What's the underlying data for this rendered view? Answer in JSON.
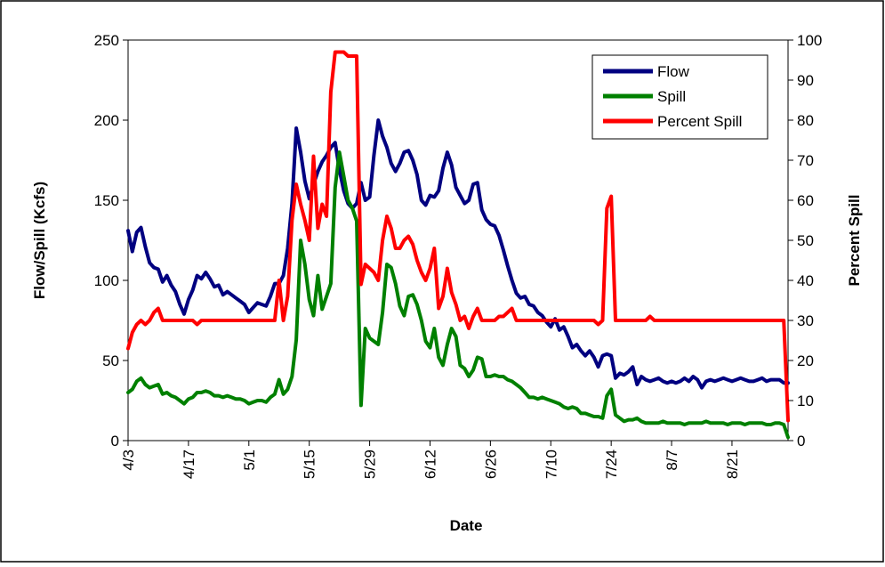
{
  "chart_data": {
    "type": "line",
    "title": "",
    "xlabel": "Date",
    "ylabel": "Flow/Spill (Kcfs)",
    "y2label": "Percent Spill",
    "ylim": [
      0,
      250
    ],
    "y2lim": [
      0,
      100
    ],
    "yticks": [
      "0",
      "50",
      "100",
      "150",
      "200",
      "250"
    ],
    "y2ticks": [
      "0",
      "10",
      "20",
      "30",
      "40",
      "50",
      "60",
      "70",
      "80",
      "90",
      "100"
    ],
    "xticks": [
      "4/3",
      "4/17",
      "5/1",
      "5/15",
      "5/29",
      "6/12",
      "6/26",
      "7/10",
      "7/24",
      "8/7",
      "8/21"
    ],
    "x_range_days": [
      0,
      153
    ],
    "grid": false,
    "legend_position": "top-right",
    "series": [
      {
        "name": "Flow",
        "axis": "left",
        "color": "#000080",
        "x": [
          0,
          1,
          2,
          3,
          4,
          5,
          6,
          7,
          8,
          9,
          10,
          11,
          12,
          13,
          14,
          15,
          16,
          17,
          18,
          19,
          20,
          21,
          22,
          23,
          24,
          25,
          26,
          27,
          28,
          29,
          30,
          31,
          32,
          33,
          34,
          35,
          36,
          37,
          38,
          39,
          40,
          41,
          42,
          43,
          44,
          45,
          46,
          47,
          48,
          49,
          50,
          51,
          52,
          53,
          54,
          55,
          56,
          57,
          58,
          59,
          60,
          61,
          62,
          63,
          64,
          65,
          66,
          67,
          68,
          69,
          70,
          71,
          72,
          73,
          74,
          75,
          76,
          77,
          78,
          79,
          80,
          81,
          82,
          83,
          84,
          85,
          86,
          87,
          88,
          89,
          90,
          91,
          92,
          93,
          94,
          95,
          96,
          97,
          98,
          99,
          100,
          101,
          102,
          103,
          104,
          105,
          106,
          107,
          108,
          109,
          110,
          111,
          112,
          113,
          114,
          115,
          116,
          117,
          118,
          119,
          120,
          121,
          122,
          123,
          124,
          125,
          126,
          127,
          128,
          129,
          130,
          131,
          132,
          133,
          134,
          135,
          136,
          137,
          138,
          139,
          140,
          141,
          142,
          143,
          144,
          145,
          146,
          147,
          148,
          149,
          150,
          151,
          152,
          153
        ],
        "values": [
          131,
          118,
          130,
          133,
          121,
          111,
          108,
          107,
          99,
          103,
          97,
          93,
          85,
          79,
          88,
          94,
          103,
          101,
          105,
          101,
          96,
          97,
          91,
          93,
          91,
          89,
          87,
          85,
          80,
          83,
          86,
          85,
          84,
          90,
          98,
          98,
          103,
          120,
          148,
          195,
          180,
          162,
          151,
          160,
          168,
          174,
          178,
          183,
          186,
          169,
          156,
          148,
          145,
          148,
          161,
          150,
          152,
          178,
          200,
          190,
          183,
          173,
          168,
          173,
          180,
          181,
          175,
          166,
          150,
          147,
          153,
          152,
          156,
          170,
          180,
          172,
          158,
          153,
          148,
          150,
          160,
          161,
          144,
          138,
          135,
          134,
          128,
          119,
          109,
          100,
          92,
          89,
          90,
          85,
          84,
          80,
          78,
          74,
          71,
          76,
          69,
          71,
          65,
          58,
          60,
          56,
          53,
          56,
          52,
          46,
          53,
          54,
          53,
          39,
          42,
          41,
          43,
          46,
          35,
          40,
          38,
          37,
          38,
          39,
          37,
          36,
          37,
          36,
          37,
          39,
          37,
          40,
          38,
          33,
          37,
          38,
          37,
          38,
          39,
          38,
          37,
          38,
          39,
          38,
          37,
          37,
          38,
          39,
          37,
          38,
          38,
          38,
          36,
          36
        ]
      },
      {
        "name": "Spill",
        "axis": "left",
        "color": "#008000",
        "x": [
          0,
          1,
          2,
          3,
          4,
          5,
          6,
          7,
          8,
          9,
          10,
          11,
          12,
          13,
          14,
          15,
          16,
          17,
          18,
          19,
          20,
          21,
          22,
          23,
          24,
          25,
          26,
          27,
          28,
          29,
          30,
          31,
          32,
          33,
          34,
          35,
          36,
          37,
          38,
          39,
          40,
          41,
          42,
          43,
          44,
          45,
          46,
          47,
          48,
          49,
          50,
          51,
          52,
          53,
          54,
          55,
          56,
          57,
          58,
          59,
          60,
          61,
          62,
          63,
          64,
          65,
          66,
          67,
          68,
          69,
          70,
          71,
          72,
          73,
          74,
          75,
          76,
          77,
          78,
          79,
          80,
          81,
          82,
          83,
          84,
          85,
          86,
          87,
          88,
          89,
          90,
          91,
          92,
          93,
          94,
          95,
          96,
          97,
          98,
          99,
          100,
          101,
          102,
          103,
          104,
          105,
          106,
          107,
          108,
          109,
          110,
          111,
          112,
          113,
          114,
          115,
          116,
          117,
          118,
          119,
          120,
          121,
          122,
          123,
          124,
          125,
          126,
          127,
          128,
          129,
          130,
          131,
          132,
          133,
          134,
          135,
          136,
          137,
          138,
          139,
          140,
          141,
          142,
          143,
          144,
          145,
          146,
          147,
          148,
          149,
          150,
          151,
          152,
          153
        ],
        "values": [
          30,
          32,
          37,
          39,
          35,
          33,
          34,
          35,
          29,
          30,
          28,
          27,
          25,
          23,
          26,
          27,
          30,
          30,
          31,
          30,
          28,
          28,
          27,
          28,
          27,
          26,
          26,
          25,
          23,
          24,
          25,
          25,
          24,
          27,
          29,
          38,
          29,
          32,
          40,
          63,
          125,
          110,
          88,
          78,
          103,
          82,
          90,
          98,
          158,
          180,
          165,
          150,
          145,
          137,
          22,
          70,
          64,
          62,
          60,
          80,
          110,
          108,
          98,
          84,
          78,
          90,
          91,
          85,
          75,
          62,
          58,
          70,
          52,
          47,
          60,
          70,
          65,
          47,
          45,
          40,
          44,
          52,
          51,
          40,
          40,
          41,
          40,
          40,
          38,
          37,
          35,
          33,
          30,
          27,
          27,
          26,
          27,
          26,
          25,
          24,
          23,
          21,
          20,
          21,
          20,
          17,
          17,
          16,
          15,
          15,
          14,
          28,
          32,
          16,
          14,
          12,
          13,
          13,
          14,
          12,
          11,
          11,
          11,
          11,
          12,
          11,
          11,
          11,
          11,
          10,
          11,
          11,
          11,
          11,
          12,
          11,
          11,
          11,
          11,
          10,
          11,
          11,
          11,
          10,
          11,
          11,
          11,
          11,
          10,
          10,
          11,
          11,
          10,
          2
        ]
      },
      {
        "name": "Percent Spill",
        "axis": "right",
        "color": "#ff0000",
        "x": [
          0,
          1,
          2,
          3,
          4,
          5,
          6,
          7,
          8,
          9,
          10,
          11,
          12,
          13,
          14,
          15,
          16,
          17,
          18,
          19,
          20,
          21,
          22,
          23,
          24,
          25,
          26,
          27,
          28,
          29,
          30,
          31,
          32,
          33,
          34,
          35,
          36,
          37,
          38,
          39,
          40,
          41,
          42,
          43,
          44,
          45,
          46,
          47,
          48,
          49,
          50,
          51,
          52,
          53,
          54,
          55,
          56,
          57,
          58,
          59,
          60,
          61,
          62,
          63,
          64,
          65,
          66,
          67,
          68,
          69,
          70,
          71,
          72,
          73,
          74,
          75,
          76,
          77,
          78,
          79,
          80,
          81,
          82,
          83,
          84,
          85,
          86,
          87,
          88,
          89,
          90,
          91,
          92,
          93,
          94,
          95,
          96,
          97,
          98,
          99,
          100,
          101,
          102,
          103,
          104,
          105,
          106,
          107,
          108,
          109,
          110,
          111,
          112,
          113,
          114,
          115,
          116,
          117,
          118,
          119,
          120,
          121,
          122,
          123,
          124,
          125,
          126,
          127,
          128,
          129,
          130,
          131,
          132,
          133,
          134,
          135,
          136,
          137,
          138,
          139,
          140,
          141,
          142,
          143,
          144,
          145,
          146,
          147,
          148,
          149,
          150,
          151,
          152,
          153
        ],
        "values": [
          23,
          27,
          29,
          30,
          29,
          30,
          32,
          33,
          30,
          30,
          30,
          30,
          30,
          30,
          30,
          30,
          29,
          30,
          30,
          30,
          30,
          30,
          30,
          30,
          30,
          30,
          30,
          30,
          30,
          30,
          30,
          30,
          30,
          30,
          30,
          40,
          30,
          36,
          55,
          64,
          59,
          55,
          50,
          71,
          53,
          59,
          56,
          87,
          97,
          97,
          97,
          96,
          96,
          96,
          39,
          44,
          43,
          42,
          40,
          50,
          56,
          53,
          48,
          48,
          50,
          51,
          49,
          45,
          42,
          40,
          43,
          48,
          33,
          36,
          43,
          37,
          34,
          30,
          31,
          28,
          31,
          33,
          30,
          30,
          30,
          30,
          31,
          31,
          32,
          33,
          30,
          30,
          30,
          30,
          30,
          30,
          30,
          30,
          30,
          30,
          30,
          30,
          30,
          30,
          30,
          30,
          30,
          30,
          30,
          29,
          30,
          58,
          61,
          30,
          30,
          30,
          30,
          30,
          30,
          30,
          30,
          31,
          30,
          30,
          30,
          30,
          30,
          30,
          30,
          30,
          30,
          30,
          30,
          30,
          30,
          30,
          30,
          30,
          30,
          30,
          30,
          30,
          30,
          30,
          30,
          30,
          30,
          30,
          30,
          30,
          30,
          30,
          30,
          5
        ]
      }
    ]
  }
}
